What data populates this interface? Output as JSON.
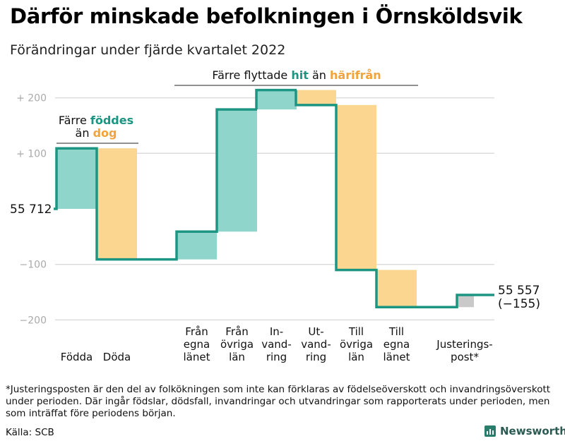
{
  "title": "Därför minskade befolkningen i Örnsköldsvik",
  "subtitle": "Förändringar under fjärde kvartalet 2022",
  "footnote": "*Justeringsposten är den del av folkökningen som inte kan förklaras av födelseöverskott och invandringsöverskott under perioden. Där ingår födslar, dödsfall, invandringar och utvandringar som rapporterats under perioden, men som inträffat före periodens början.",
  "source": "Källa: SCB",
  "brand": "Newsworthy",
  "colors": {
    "line": "#1d9583",
    "positive": "#8fd5cb",
    "negative": "#fad690",
    "adjustment": "#c9c9c9",
    "grid": "#dddddd"
  },
  "chart_data": {
    "type": "waterfall",
    "title": "Därför minskade befolkningen i Örnsköldsvik",
    "subtitle": "Förändringar under fjärde kvartalet 2022",
    "baseline": 55712,
    "start_label": "55 712",
    "end_label_value": "55 557",
    "end_label_change": "(−155)",
    "y_ticks": [
      {
        "value": 200,
        "label": "+ 200"
      },
      {
        "value": 100,
        "label": "+ 100"
      },
      {
        "value": -100,
        "label": "−100"
      },
      {
        "value": -200,
        "label": "−200"
      }
    ],
    "ylim": [
      -210,
      220
    ],
    "steps": [
      {
        "label": [
          "Födda"
        ],
        "change": 109,
        "kind": "positive"
      },
      {
        "label": [
          "Döda"
        ],
        "change": -200,
        "kind": "negative"
      },
      {
        "label": [
          "Från",
          "egna",
          "länet"
        ],
        "change": 50,
        "kind": "positive"
      },
      {
        "label": [
          "Från",
          "övriga",
          "län"
        ],
        "change": 220,
        "kind": "positive"
      },
      {
        "label": [
          "In-",
          "vand-",
          "ring"
        ],
        "change": 35,
        "kind": "positive"
      },
      {
        "label": [
          "Ut-",
          "vand-",
          "ring"
        ],
        "change": -27,
        "kind": "negative"
      },
      {
        "label": [
          "Till",
          "övriga",
          "län"
        ],
        "change": -297,
        "kind": "negative"
      },
      {
        "label": [
          "Till",
          "egna",
          "länet"
        ],
        "change": -67,
        "kind": "negative"
      },
      {
        "label": [
          "Justerings-",
          "post*"
        ],
        "change": 22,
        "kind": "adjustment"
      }
    ],
    "annotations": [
      {
        "lines": [
          [
            "Färre ",
            "föddes"
          ],
          [
            "än ",
            "dog"
          ]
        ]
      },
      {
        "lines": [
          [
            "Färre flyttade ",
            "hit",
            " än ",
            "härifrån"
          ]
        ]
      }
    ]
  }
}
